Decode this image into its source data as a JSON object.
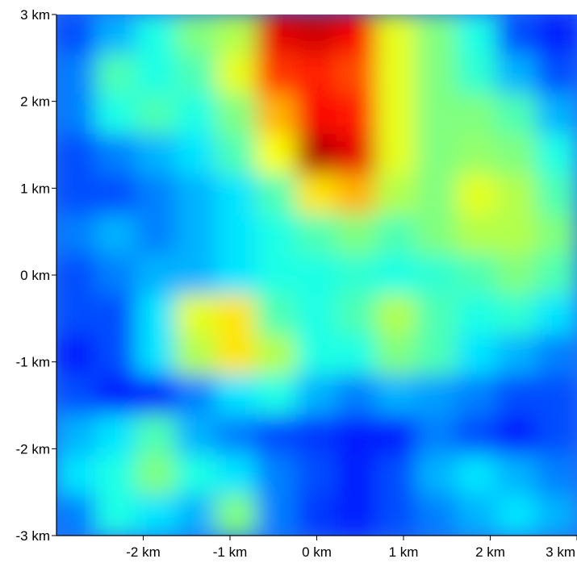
{
  "chart_data": {
    "type": "heatmap",
    "title": "",
    "xlabel": "",
    "ylabel": "",
    "x_unit": "km",
    "y_unit": "km",
    "xlim": [
      -3,
      3
    ],
    "ylim": [
      -3,
      3
    ],
    "x_ticks": [
      {
        "value": -2,
        "label": "-2 km"
      },
      {
        "value": -1,
        "label": "-1 km"
      },
      {
        "value": 0,
        "label": "0 km"
      },
      {
        "value": 1,
        "label": "1 km"
      },
      {
        "value": 2,
        "label": "2 km"
      },
      {
        "value": 3,
        "label": "3 km"
      }
    ],
    "y_ticks": [
      {
        "value": 3,
        "label": "3 km"
      },
      {
        "value": 2,
        "label": "2 km"
      },
      {
        "value": 1,
        "label": "1 km"
      },
      {
        "value": 0,
        "label": "0 km"
      },
      {
        "value": -1,
        "label": "-1 km"
      },
      {
        "value": -2,
        "label": "-2 km"
      },
      {
        "value": -3,
        "label": "-3 km"
      }
    ],
    "colormap": "jet",
    "colorbar": false,
    "grid": false,
    "value_range": [
      0,
      1
    ],
    "grid_size": [
      13,
      13
    ],
    "values": [
      [
        0.2,
        0.3,
        0.4,
        0.5,
        0.55,
        0.9,
        0.92,
        0.88,
        0.6,
        0.5,
        0.4,
        0.2,
        0.15
      ],
      [
        0.25,
        0.45,
        0.4,
        0.45,
        0.6,
        0.82,
        0.85,
        0.8,
        0.6,
        0.5,
        0.42,
        0.3,
        0.2
      ],
      [
        0.25,
        0.4,
        0.45,
        0.4,
        0.5,
        0.7,
        0.88,
        0.85,
        0.6,
        0.5,
        0.5,
        0.45,
        0.3
      ],
      [
        0.2,
        0.25,
        0.3,
        0.35,
        0.45,
        0.62,
        0.95,
        0.9,
        0.6,
        0.5,
        0.52,
        0.5,
        0.4
      ],
      [
        0.2,
        0.2,
        0.25,
        0.3,
        0.35,
        0.45,
        0.65,
        0.7,
        0.55,
        0.5,
        0.6,
        0.55,
        0.45
      ],
      [
        0.25,
        0.3,
        0.25,
        0.3,
        0.35,
        0.4,
        0.45,
        0.5,
        0.45,
        0.5,
        0.55,
        0.55,
        0.5
      ],
      [
        0.2,
        0.25,
        0.3,
        0.3,
        0.35,
        0.4,
        0.4,
        0.42,
        0.4,
        0.42,
        0.45,
        0.5,
        0.45
      ],
      [
        0.2,
        0.2,
        0.35,
        0.6,
        0.65,
        0.45,
        0.4,
        0.45,
        0.55,
        0.45,
        0.4,
        0.42,
        0.35
      ],
      [
        0.15,
        0.2,
        0.35,
        0.55,
        0.65,
        0.55,
        0.4,
        0.4,
        0.5,
        0.45,
        0.35,
        0.3,
        0.25
      ],
      [
        0.2,
        0.15,
        0.15,
        0.25,
        0.35,
        0.4,
        0.3,
        0.25,
        0.3,
        0.28,
        0.25,
        0.2,
        0.2
      ],
      [
        0.3,
        0.35,
        0.45,
        0.3,
        0.25,
        0.2,
        0.18,
        0.15,
        0.15,
        0.25,
        0.2,
        0.15,
        0.2
      ],
      [
        0.35,
        0.4,
        0.5,
        0.4,
        0.35,
        0.25,
        0.2,
        0.15,
        0.2,
        0.3,
        0.35,
        0.3,
        0.25
      ],
      [
        0.25,
        0.4,
        0.35,
        0.3,
        0.5,
        0.25,
        0.18,
        0.15,
        0.2,
        0.25,
        0.3,
        0.35,
        0.3
      ]
    ]
  }
}
